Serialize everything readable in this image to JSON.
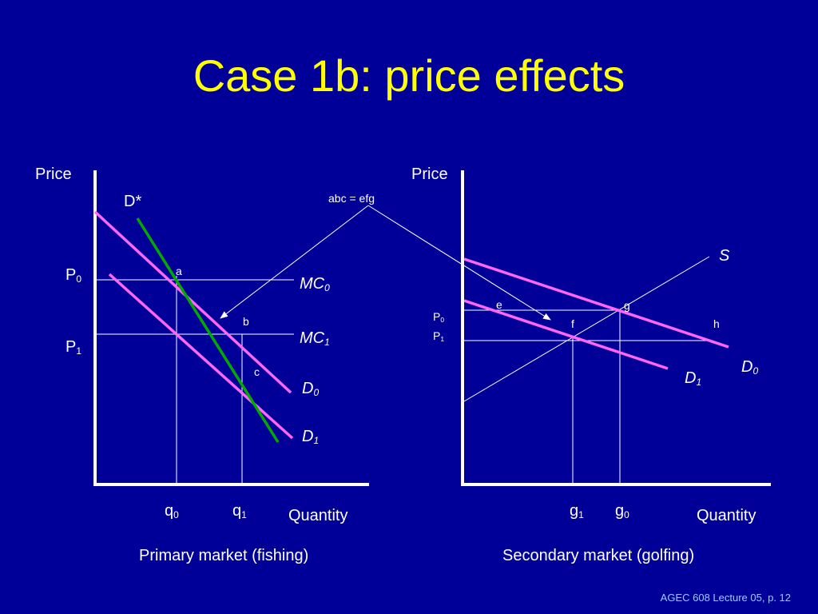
{
  "title": "Case 1b: price effects",
  "footer": "AGEC 608 Lecture 05, p. 12",
  "colors": {
    "background": "#000099",
    "title": "#ffff00",
    "demand": "#ff66ff",
    "derived_demand": "#00aa00",
    "axes": "#ffffff",
    "footer": "#99ccff"
  },
  "primary": {
    "price_axis": "Price",
    "quantity_axis": "Quantity",
    "caption": "Primary market  (fishing)",
    "p0": {
      "base": "P",
      "sub": "0"
    },
    "p1": {
      "base": "P",
      "sub": "1"
    },
    "q0": {
      "base": "q",
      "sub": "0"
    },
    "q1": {
      "base": "q",
      "sub": "1"
    },
    "dstar": "D*",
    "mc0": {
      "base": "MC",
      "sub": "0"
    },
    "mc1": {
      "base": "MC",
      "sub": "1"
    },
    "d0": {
      "base": "D",
      "sub": "0"
    },
    "d1": {
      "base": "D",
      "sub": "1"
    },
    "point_a": "a",
    "point_b": "b",
    "point_c": "c"
  },
  "secondary": {
    "price_axis": "Price",
    "quantity_axis": "Quantity",
    "caption": "Secondary market (golfing)",
    "p0": {
      "base": "P",
      "sub": "0"
    },
    "p1": {
      "base": "P",
      "sub": "1"
    },
    "g0": {
      "base": "g",
      "sub": "0"
    },
    "g1": {
      "base": "g",
      "sub": "1"
    },
    "s": "S",
    "d0": {
      "base": "D",
      "sub": "0"
    },
    "d1": {
      "base": "D",
      "sub": "1"
    },
    "point_e": "e",
    "point_f": "f",
    "point_g": "g",
    "point_h": "h"
  },
  "annotation": "abc = efg"
}
